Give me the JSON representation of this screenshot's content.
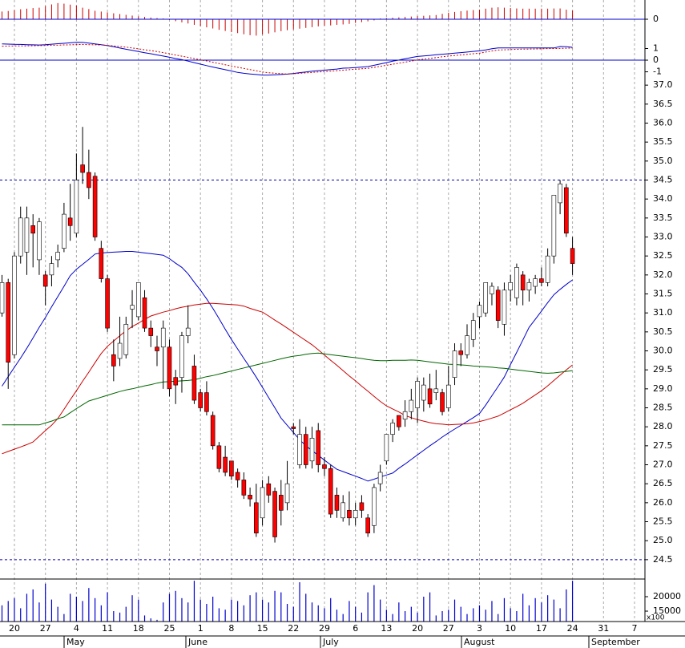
{
  "chart_data": {
    "type": "candlestick",
    "x_labels": [
      "20",
      "27",
      "4",
      "11",
      "18",
      "25",
      "1",
      "8",
      "15",
      "22",
      "29",
      "6",
      "13",
      "20",
      "27",
      "3",
      "10",
      "17",
      "24",
      "31",
      "7"
    ],
    "months": [
      "May",
      "June",
      "July",
      "August",
      "September"
    ],
    "histogram": {
      "color": "#cc0000",
      "zero_color": "#0000cc",
      "ylim": [
        -1,
        1
      ],
      "yticks": [
        0
      ],
      "values": [
        0.4,
        0.43,
        0.48,
        0.52,
        0.55,
        0.58,
        0.6,
        0.68,
        0.77,
        0.84,
        0.81,
        0.76,
        0.71,
        0.6,
        0.53,
        0.44,
        0.4,
        0.36,
        0.31,
        0.27,
        0.23,
        0.19,
        0.15,
        0.12,
        0.09,
        0.06,
        0.04,
        -0.04,
        -0.1,
        -0.16,
        -0.22,
        -0.29,
        -0.36,
        -0.42,
        -0.48,
        -0.55,
        -0.61,
        -0.67,
        -0.72,
        -0.78,
        -0.83,
        -0.85,
        -0.79,
        -0.74,
        -0.68,
        -0.62,
        -0.57,
        -0.53,
        -0.49,
        -0.45,
        -0.41,
        -0.37,
        -0.34,
        -0.32,
        -0.29,
        -0.27,
        -0.24,
        -0.19,
        -0.15,
        -0.11,
        -0.06,
        0.04,
        0.06,
        0.08,
        0.1,
        0.12,
        0.14,
        0.16,
        0.18,
        0.2,
        0.22,
        0.28,
        0.34,
        0.38,
        0.42,
        0.45,
        0.48,
        0.5,
        0.55,
        0.6,
        0.62,
        0.6,
        0.58,
        0.56,
        0.55,
        0.55,
        0.55,
        0.55,
        0.55,
        0.56,
        0.56,
        0.5,
        0.45
      ]
    },
    "macd": {
      "ylim": [
        -1.72,
        3.1
      ],
      "yticks": [
        1,
        0,
        -1
      ],
      "zero_color": "#0000cc",
      "series": [
        {
          "color": "#0000cc",
          "dashed": false,
          "values": [
            1.4,
            1.38,
            1.36,
            1.35,
            1.33,
            1.32,
            1.3,
            1.33,
            1.37,
            1.41,
            1.45,
            1.49,
            1.53,
            1.52,
            1.46,
            1.39,
            1.33,
            1.25,
            1.15,
            1.04,
            0.94,
            0.84,
            0.74,
            0.64,
            0.55,
            0.45,
            0.35,
            0.25,
            0.14,
            0.04,
            -0.08,
            -0.21,
            -0.34,
            -0.47,
            -0.59,
            -0.7,
            -0.82,
            -0.93,
            -1.05,
            -1.13,
            -1.18,
            -1.23,
            -1.28,
            -1.28,
            -1.26,
            -1.23,
            -1.2,
            -1.14,
            -1.07,
            -1.01,
            -0.95,
            -0.9,
            -0.86,
            -0.81,
            -0.76,
            -0.69,
            -0.67,
            -0.63,
            -0.59,
            -0.55,
            -0.44,
            -0.32,
            -0.21,
            -0.09,
            0.01,
            0.12,
            0.22,
            0.32,
            0.36,
            0.41,
            0.46,
            0.51,
            0.55,
            0.6,
            0.65,
            0.7,
            0.75,
            0.8,
            0.88,
            0.98,
            1.05,
            1.05,
            1.05,
            1.05,
            1.05,
            1.05,
            1.05,
            1.05,
            1.05,
            1.05,
            1.17,
            1.16,
            1.1
          ]
        },
        {
          "color": "#cc0000",
          "dashed": true,
          "values": [
            1.2,
            1.21,
            1.22,
            1.23,
            1.23,
            1.24,
            1.25,
            1.26,
            1.28,
            1.29,
            1.31,
            1.32,
            1.34,
            1.35,
            1.33,
            1.32,
            1.31,
            1.27,
            1.22,
            1.17,
            1.12,
            1.05,
            0.97,
            0.89,
            0.82,
            0.74,
            0.65,
            0.55,
            0.44,
            0.34,
            0.24,
            0.13,
            0.03,
            -0.07,
            -0.18,
            -0.29,
            -0.39,
            -0.5,
            -0.61,
            -0.71,
            -0.81,
            -0.91,
            -1.02,
            -1.08,
            -1.12,
            -1.16,
            -1.19,
            -1.17,
            -1.13,
            -1.09,
            -1.05,
            -1.01,
            -0.98,
            -0.94,
            -0.9,
            -0.86,
            -0.82,
            -0.78,
            -0.74,
            -0.7,
            -0.62,
            -0.53,
            -0.44,
            -0.35,
            -0.26,
            -0.17,
            -0.08,
            0.02,
            0.09,
            0.15,
            0.22,
            0.29,
            0.35,
            0.4,
            0.45,
            0.5,
            0.55,
            0.6,
            0.7,
            0.79,
            0.87,
            0.89,
            0.91,
            0.93,
            0.95,
            0.95,
            0.96,
            0.98,
            0.99,
            1.0,
            1.01,
            1.03,
            1.04
          ]
        }
      ]
    },
    "price": {
      "ylim": [
        23.99,
        37.13
      ],
      "yticks": [
        {
          "value": 37,
          "label": "37.0"
        },
        36.5,
        {
          "value": 36,
          "label": "36.0"
        },
        35.5,
        {
          "value": 35,
          "label": "35.0"
        },
        34.5,
        {
          "value": 34,
          "label": "34.0"
        },
        33.5,
        {
          "value": 33,
          "label": "33.0"
        },
        32.5,
        {
          "value": 32,
          "label": "32.0"
        },
        31.5,
        {
          "value": 31,
          "label": "31.0"
        },
        30.5,
        {
          "value": 30,
          "label": "30.0"
        },
        29.5,
        {
          "value": 29,
          "label": "29.0"
        },
        28.5,
        {
          "value": 28,
          "label": "28.0"
        },
        27.5,
        {
          "value": 27,
          "label": "27.0"
        },
        26.5,
        {
          "value": 26,
          "label": "26.0"
        },
        25.5,
        {
          "value": 25,
          "label": "25.0"
        },
        24.5
      ],
      "hlines": [
        34.5,
        24.5
      ],
      "up_color": "#ffffff",
      "down_color": "#ff0000",
      "open": [
        31.0,
        31.8,
        29.9,
        32.5,
        32.6,
        33.3,
        32.4,
        32.0,
        32.0,
        32.4,
        32.7,
        33.5,
        33.1,
        34.9,
        34.7,
        34.6,
        32.7,
        31.9,
        29.9,
        29.8,
        29.9,
        31.1,
        30.9,
        31.4,
        30.6,
        30.1,
        30.1,
        30.1,
        29.3,
        29.3,
        30.4,
        29.6,
        28.9,
        28.9,
        28.3,
        27.5,
        27.2,
        27.1,
        26.8,
        26.6,
        26.2,
        26.0,
        25.6,
        26.5,
        26.3,
        26.2,
        26.0,
        28.0,
        27.0,
        27.8,
        27.1,
        27.9,
        27.0,
        26.9,
        26.2,
        25.6,
        25.8,
        25.6,
        26.0,
        25.6,
        25.4,
        26.5,
        27.1,
        27.8,
        28.3,
        28.2,
        28.4,
        28.5,
        28.7,
        29.0,
        28.9,
        28.9,
        28.5,
        29.3,
        30.0,
        29.9,
        30.3,
        30.9,
        31.0,
        31.5,
        31.6,
        30.7,
        31.6,
        31.4,
        32.0,
        31.6,
        31.7,
        31.9,
        31.8,
        32.5,
        33.9,
        34.3,
        32.7
      ],
      "high": [
        32.0,
        31.9,
        32.6,
        33.8,
        33.8,
        33.6,
        33.5,
        32.1,
        32.5,
        32.8,
        33.9,
        34.4,
        35.2,
        35.9,
        35.3,
        34.7,
        32.9,
        32.0,
        30.3,
        30.9,
        30.9,
        31.6,
        31.8,
        31.6,
        30.8,
        30.4,
        30.8,
        30.3,
        29.5,
        30.5,
        31.2,
        29.9,
        29.0,
        29.2,
        28.4,
        27.6,
        27.5,
        27.1,
        26.9,
        26.8,
        26.4,
        26.5,
        26.6,
        26.7,
        26.4,
        26.6,
        27.1,
        28.1,
        28.2,
        28.0,
        28.0,
        28.1,
        27.2,
        27.0,
        26.4,
        26.2,
        26.3,
        26.0,
        26.2,
        25.7,
        26.5,
        27.0,
        27.8,
        28.2,
        28.3,
        28.7,
        29.0,
        29.3,
        29.3,
        29.4,
        29.5,
        29.0,
        29.6,
        30.2,
        30.2,
        30.7,
        31.0,
        31.3,
        31.8,
        31.8,
        31.7,
        31.8,
        32.0,
        32.3,
        32.1,
        31.9,
        32.0,
        32.2,
        32.7,
        34.1,
        34.5,
        34.4,
        33.0
      ],
      "low": [
        30.9,
        29.0,
        29.8,
        32.3,
        32.0,
        32.2,
        32.0,
        31.2,
        31.7,
        32.2,
        32.6,
        32.9,
        33.0,
        34.4,
        34.0,
        32.9,
        31.8,
        30.5,
        29.2,
        29.6,
        29.8,
        30.6,
        30.8,
        30.5,
        30.1,
        29.6,
        29.0,
        28.8,
        28.6,
        28.9,
        30.2,
        28.6,
        28.4,
        28.3,
        27.4,
        26.8,
        26.7,
        26.6,
        26.4,
        26.1,
        25.9,
        25.1,
        25.4,
        26.0,
        24.95,
        25.4,
        25.8,
        27.8,
        26.9,
        26.9,
        26.9,
        26.8,
        26.7,
        25.6,
        25.6,
        25.5,
        25.4,
        25.4,
        25.6,
        25.1,
        25.2,
        26.3,
        27.0,
        27.6,
        27.9,
        28.0,
        28.2,
        28.1,
        28.4,
        28.5,
        28.7,
        28.3,
        28.4,
        29.1,
        29.6,
        29.8,
        30.1,
        30.6,
        30.9,
        31.2,
        30.6,
        30.4,
        31.3,
        31.2,
        31.2,
        31.3,
        31.5,
        31.7,
        31.7,
        32.3,
        33.6,
        33.0,
        32.0
      ],
      "close": [
        31.8,
        29.7,
        32.5,
        33.5,
        33.5,
        33.1,
        33.4,
        31.7,
        32.3,
        32.6,
        33.6,
        33.3,
        34.5,
        34.7,
        34.3,
        33.0,
        31.9,
        30.6,
        29.6,
        30.2,
        30.7,
        31.2,
        31.8,
        30.6,
        30.4,
        30.0,
        30.6,
        29.0,
        29.1,
        30.4,
        30.6,
        28.7,
        28.5,
        28.4,
        27.5,
        26.9,
        26.8,
        26.7,
        26.6,
        26.2,
        26.1,
        25.2,
        26.4,
        26.2,
        25.1,
        25.8,
        26.5,
        27.95,
        27.8,
        27.0,
        27.7,
        27.0,
        26.9,
        25.7,
        25.8,
        26.0,
        25.6,
        25.8,
        25.8,
        25.2,
        26.4,
        26.8,
        27.8,
        28.1,
        28.0,
        28.4,
        28.7,
        29.2,
        29.1,
        28.6,
        29.0,
        28.4,
        29.1,
        30.0,
        29.9,
        30.4,
        30.8,
        31.2,
        31.8,
        31.7,
        30.8,
        31.6,
        31.8,
        32.2,
        31.6,
        31.8,
        31.9,
        31.8,
        32.5,
        34.1,
        34.4,
        33.1,
        32.3
      ]
    },
    "moving_averages": [
      {
        "color": "#0000cc",
        "values": [
          29.07,
          29.32,
          29.57,
          29.81,
          30.07,
          30.34,
          30.62,
          30.88,
          31.16,
          31.43,
          31.7,
          31.98,
          32.15,
          32.28,
          32.41,
          32.55,
          32.58,
          32.59,
          32.6,
          32.61,
          32.62,
          32.62,
          32.6,
          32.58,
          32.56,
          32.54,
          32.52,
          32.43,
          32.31,
          32.2,
          32.03,
          31.81,
          31.6,
          31.37,
          31.12,
          30.85,
          30.57,
          30.3,
          30.05,
          29.8,
          29.56,
          29.31,
          29.04,
          28.77,
          28.5,
          28.23,
          28.04,
          27.85,
          27.66,
          27.5,
          27.37,
          27.25,
          27.12,
          27.0,
          26.88,
          26.82,
          26.76,
          26.7,
          26.64,
          26.57,
          26.62,
          26.68,
          26.73,
          26.78,
          26.91,
          27.02,
          27.14,
          27.26,
          27.38,
          27.5,
          27.61,
          27.73,
          27.84,
          27.94,
          28.04,
          28.14,
          28.24,
          28.35,
          28.57,
          28.82,
          29.06,
          29.31,
          29.64,
          29.96,
          30.29,
          30.62,
          30.83,
          31.05,
          31.27,
          31.48,
          31.62,
          31.75,
          31.87
        ]
      },
      {
        "color": "#cc0000",
        "values": [
          27.29,
          27.35,
          27.41,
          27.47,
          27.53,
          27.6,
          27.75,
          27.9,
          28.04,
          28.22,
          28.46,
          28.71,
          28.95,
          29.2,
          29.44,
          29.69,
          29.93,
          30.12,
          30.26,
          30.4,
          30.53,
          30.64,
          30.73,
          30.83,
          30.92,
          30.97,
          31.02,
          31.06,
          31.11,
          31.15,
          31.18,
          31.21,
          31.23,
          31.25,
          31.25,
          31.24,
          31.23,
          31.22,
          31.21,
          31.18,
          31.12,
          31.07,
          31.02,
          30.92,
          30.81,
          30.71,
          30.6,
          30.49,
          30.38,
          30.27,
          30.16,
          30.03,
          29.89,
          29.75,
          29.62,
          29.48,
          29.34,
          29.21,
          29.07,
          28.94,
          28.8,
          28.67,
          28.55,
          28.47,
          28.39,
          28.3,
          28.24,
          28.19,
          28.15,
          28.11,
          28.08,
          28.07,
          28.05,
          28.06,
          28.07,
          28.08,
          28.1,
          28.14,
          28.18,
          28.23,
          28.28,
          28.36,
          28.45,
          28.53,
          28.62,
          28.73,
          28.84,
          28.95,
          29.08,
          29.22,
          29.36,
          29.5,
          29.63
        ]
      },
      {
        "color": "#006600",
        "values": [
          28.05,
          28.05,
          28.05,
          28.05,
          28.05,
          28.05,
          28.05,
          28.1,
          28.15,
          28.21,
          28.26,
          28.37,
          28.48,
          28.58,
          28.68,
          28.73,
          28.78,
          28.83,
          28.88,
          28.93,
          28.97,
          29.0,
          29.04,
          29.08,
          29.11,
          29.15,
          29.18,
          29.19,
          29.2,
          29.21,
          29.22,
          29.24,
          29.28,
          29.32,
          29.35,
          29.39,
          29.43,
          29.47,
          29.51,
          29.55,
          29.59,
          29.63,
          29.67,
          29.71,
          29.75,
          29.79,
          29.83,
          29.86,
          29.88,
          29.91,
          29.93,
          29.94,
          29.92,
          29.9,
          29.88,
          29.86,
          29.84,
          29.82,
          29.8,
          29.77,
          29.75,
          29.74,
          29.74,
          29.75,
          29.75,
          29.75,
          29.76,
          29.75,
          29.73,
          29.71,
          29.69,
          29.67,
          29.65,
          29.64,
          29.63,
          29.62,
          29.6,
          29.59,
          29.58,
          29.57,
          29.55,
          29.54,
          29.52,
          29.5,
          29.48,
          29.46,
          29.44,
          29.42,
          29.41,
          29.42,
          29.44,
          29.46,
          29.48
        ]
      }
    ],
    "volume": {
      "color": "#0000cc",
      "ylim": [
        11400,
        26100
      ],
      "yticks": [
        20000,
        15000
      ],
      "unit_label": "x100",
      "values": [
        17000,
        18500,
        19500,
        16000,
        21000,
        22500,
        18000,
        24500,
        19000,
        16500,
        14000,
        21000,
        20000,
        18500,
        23000,
        19500,
        17000,
        21500,
        15000,
        14500,
        16500,
        20500,
        19000,
        13500,
        12500,
        12000,
        18000,
        21000,
        22000,
        19500,
        18000,
        25500,
        19000,
        17500,
        20000,
        16000,
        15500,
        19000,
        18500,
        17000,
        20500,
        21500,
        19000,
        18000,
        22000,
        21500,
        17500,
        16500,
        25000,
        21000,
        18000,
        17000,
        16000,
        19500,
        15500,
        14000,
        18500,
        16500,
        14500,
        21500,
        24000,
        19000,
        15500,
        14000,
        18000,
        15000,
        16500,
        14500,
        20000,
        21500,
        13500,
        15000,
        15500,
        19000,
        16500,
        14000,
        16000,
        17000,
        15500,
        18500,
        14000,
        19500,
        16000,
        15000,
        21000,
        17000,
        19500,
        18000,
        20500,
        19000,
        16000,
        22500,
        25500
      ]
    }
  }
}
